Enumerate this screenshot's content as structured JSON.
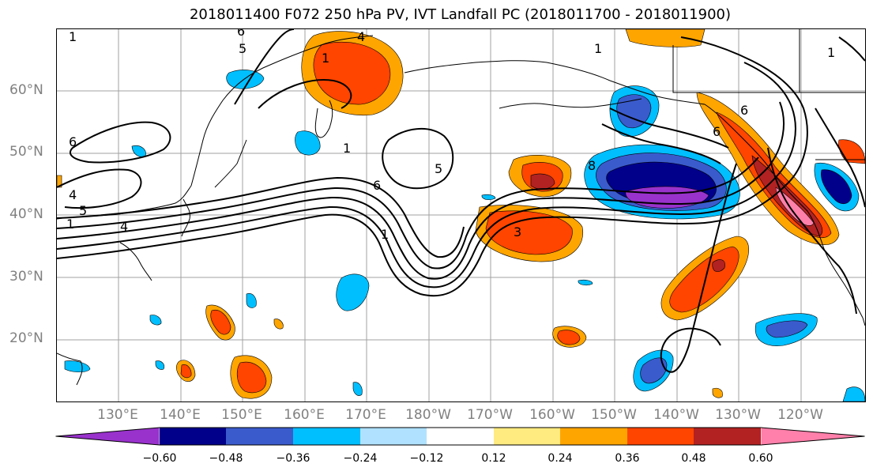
{
  "title": "2018011400 F072 250 hPa PV, IVT Landfall PC (2018011700 - 2018011900)",
  "lat_labels": [
    "60°N",
    "50°N",
    "40°N",
    "30°N",
    "20°N"
  ],
  "lon_labels": [
    "130°E",
    "140°E",
    "150°E",
    "160°E",
    "170°E",
    "180°W",
    "170°W",
    "160°W",
    "150°W",
    "140°W",
    "130°W",
    "120°W"
  ],
  "contour_labels": [
    "1",
    "4",
    "5",
    "1",
    "6",
    "4",
    "5",
    "6",
    "4",
    "1",
    "5",
    "6",
    "1",
    "8",
    "1",
    "1",
    "6",
    "6",
    "3",
    "1"
  ],
  "colorbar": {
    "ticks": [
      "−0.60",
      "−0.48",
      "−0.36",
      "−0.24",
      "−0.12",
      "0.12",
      "0.24",
      "0.36",
      "0.48",
      "0.60"
    ],
    "colors": [
      "#9932cc",
      "#00008b",
      "#3a5bcc",
      "#00bfff",
      "#b0e2ff",
      "#ffffff",
      "#ffeb80",
      "#ffa500",
      "#ff4500",
      "#b22222",
      "#ff80aa"
    ]
  }
}
